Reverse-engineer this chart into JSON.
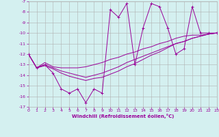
{
  "xlabel": "Windchill (Refroidissement éolien,°C)",
  "x": [
    0,
    1,
    2,
    3,
    4,
    5,
    6,
    7,
    8,
    9,
    10,
    11,
    12,
    13,
    14,
    15,
    16,
    17,
    18,
    19,
    20,
    21,
    22,
    23
  ],
  "line1": [
    -12.0,
    -13.3,
    -13.0,
    -13.8,
    -15.3,
    -15.7,
    -15.3,
    -16.6,
    -15.3,
    -15.7,
    -7.8,
    -8.5,
    -7.2,
    -13.0,
    -9.5,
    -7.2,
    -7.5,
    -9.5,
    -12.0,
    -11.5,
    -7.5,
    -10.0,
    -10.0,
    -10.0
  ],
  "line2": [
    -12.0,
    -13.3,
    -12.8,
    -13.2,
    -13.3,
    -13.3,
    -13.3,
    -13.2,
    -13.0,
    -12.8,
    -12.5,
    -12.3,
    -12.0,
    -11.8,
    -11.5,
    -11.3,
    -11.0,
    -10.8,
    -10.5,
    -10.3,
    -10.2,
    -10.2,
    -10.1,
    -10.0
  ],
  "line3": [
    -12.0,
    -13.3,
    -13.0,
    -13.3,
    -13.6,
    -13.8,
    -14.0,
    -14.2,
    -14.0,
    -13.8,
    -13.5,
    -13.2,
    -12.8,
    -12.5,
    -12.2,
    -11.9,
    -11.6,
    -11.3,
    -11.0,
    -10.8,
    -10.5,
    -10.3,
    -10.1,
    -10.0
  ],
  "line4": [
    -12.0,
    -13.3,
    -13.1,
    -13.4,
    -13.8,
    -14.1,
    -14.3,
    -14.5,
    -14.3,
    -14.2,
    -13.9,
    -13.6,
    -13.2,
    -12.9,
    -12.5,
    -12.1,
    -11.8,
    -11.4,
    -11.0,
    -10.8,
    -10.5,
    -10.3,
    -10.1,
    -10.0
  ],
  "line_color": "#990099",
  "bg_color": "#d4f0f0",
  "grid_color": "#b0b0b0",
  "ylim": [
    -17,
    -7
  ],
  "xlim": [
    0,
    23
  ],
  "yticks": [
    -17,
    -16,
    -15,
    -14,
    -13,
    -12,
    -11,
    -10,
    -9,
    -8,
    -7
  ],
  "xticks": [
    0,
    1,
    2,
    3,
    4,
    5,
    6,
    7,
    8,
    9,
    10,
    11,
    12,
    13,
    14,
    15,
    16,
    17,
    18,
    19,
    20,
    21,
    22,
    23
  ]
}
